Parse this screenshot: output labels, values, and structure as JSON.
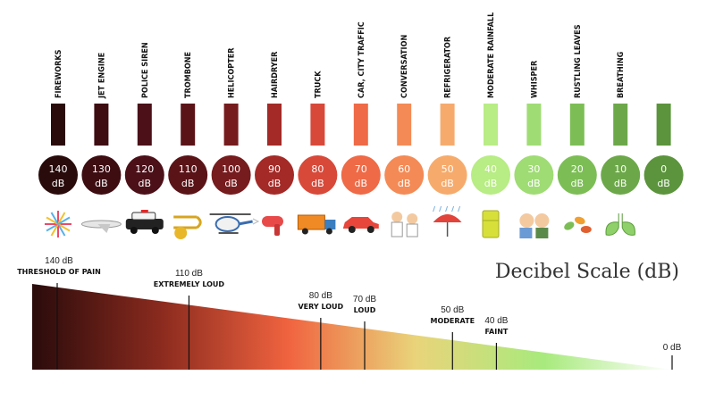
{
  "chart_data": {
    "type": "bar",
    "title": "Decibel Scale (dB)",
    "unit": "dB",
    "sources": [
      {
        "label": "FIREWORKS",
        "db": 140,
        "db_text": "140",
        "unit_text": "dB",
        "color": "#2a0b0b",
        "icon": "fireworks-icon"
      },
      {
        "label": "JET ENGINE",
        "db": 130,
        "db_text": "130",
        "unit_text": "dB",
        "color": "#3d0d12",
        "icon": "jet-icon"
      },
      {
        "label": "POLICE SIREN",
        "db": 120,
        "db_text": "120",
        "unit_text": "dB",
        "color": "#4b1018",
        "icon": "police-car-icon"
      },
      {
        "label": "TROMBONE",
        "db": 110,
        "db_text": "110",
        "unit_text": "dB",
        "color": "#5a1418",
        "icon": "trombone-icon"
      },
      {
        "label": "HELICOPTER",
        "db": 100,
        "db_text": "100",
        "unit_text": "dB",
        "color": "#761c1e",
        "icon": "helicopter-icon"
      },
      {
        "label": "HAIRDRYER",
        "db": 90,
        "db_text": "90",
        "unit_text": "dB",
        "color": "#a32a27",
        "icon": "hairdryer-icon"
      },
      {
        "label": "TRUCK",
        "db": 80,
        "db_text": "80",
        "unit_text": "dB",
        "color": "#d8493a",
        "icon": "truck-icon"
      },
      {
        "label": "CAR, CITY TRAFFIC",
        "db": 70,
        "db_text": "70",
        "unit_text": "dB",
        "color": "#ef6a46",
        "icon": "car-icon"
      },
      {
        "label": "CONVERSATION",
        "db": 60,
        "db_text": "60",
        "unit_text": "dB",
        "color": "#f48a55",
        "icon": "conversation-icon"
      },
      {
        "label": "REFRIGERATOR",
        "db": 50,
        "db_text": "50",
        "unit_text": "dB",
        "color": "#f6ab6c",
        "icon": "umbrella-icon"
      },
      {
        "label": "MODERATE RAINFALL",
        "db": 40,
        "db_text": "40",
        "unit_text": "dB",
        "color": "#b8ec84",
        "icon": "refrigerator-icon"
      },
      {
        "label": "WHISPER",
        "db": 30,
        "db_text": "30",
        "unit_text": "dB",
        "color": "#9fdc74",
        "icon": "whisper-icon"
      },
      {
        "label": "RUSTLING LEAVES",
        "db": 20,
        "db_text": "20",
        "unit_text": "dB",
        "color": "#7cbe55",
        "icon": "leaves-icon"
      },
      {
        "label": "BREATHING",
        "db": 10,
        "db_text": "10",
        "unit_text": "dB",
        "color": "#6ca849",
        "icon": "lungs-icon"
      },
      {
        "label": "",
        "db": 0,
        "db_text": "0",
        "unit_text": "dB",
        "color": "#5b943c",
        "icon": ""
      }
    ],
    "scale_markers": [
      {
        "db": 140,
        "db_text": "140 dB",
        "desc": "THRESHOLD OF PAIN"
      },
      {
        "db": 110,
        "db_text": "110 dB",
        "desc": "EXTREMELY LOUD"
      },
      {
        "db": 80,
        "db_text": "80 dB",
        "desc": "VERY LOUD"
      },
      {
        "db": 70,
        "db_text": "70 dB",
        "desc": "LOUD"
      },
      {
        "db": 50,
        "db_text": "50 dB",
        "desc": "MODERATE"
      },
      {
        "db": 40,
        "db_text": "40 dB",
        "desc": "FAINT"
      },
      {
        "db": 0,
        "db_text": "0 dB",
        "desc": ""
      }
    ],
    "scale_range": [
      0,
      140
    ],
    "gradient_colors": [
      "#2a0b0b",
      "#8a2a1e",
      "#f0633f",
      "#e9d47a",
      "#a8ea7d",
      "#ffffff"
    ]
  }
}
